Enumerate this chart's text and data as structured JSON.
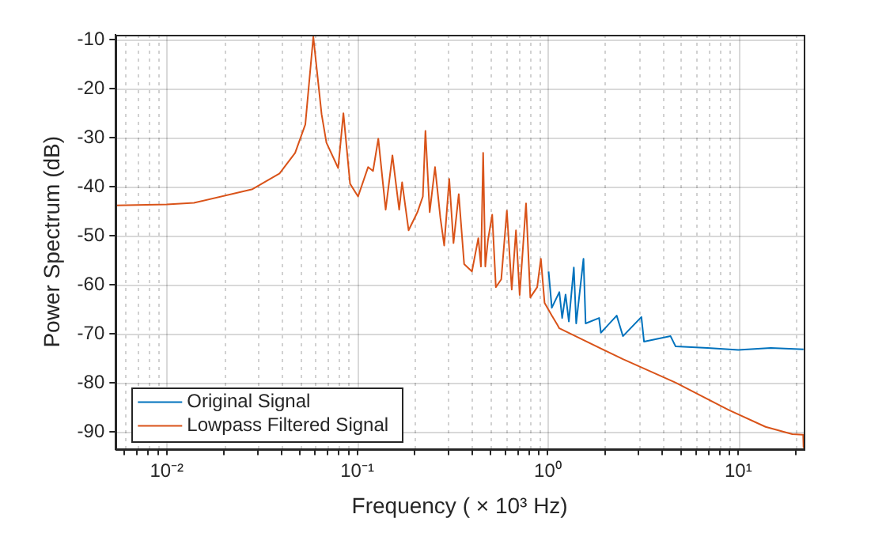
{
  "chart_data": {
    "type": "line",
    "xlabel": "Frequency ( × 10³ Hz)",
    "ylabel": "Power Spectrum (dB)",
    "log": "x",
    "grid": true,
    "legend": "bottom left",
    "marker": "none",
    "line_style": "solid",
    "xlim": [
      0.0054,
      22.05
    ],
    "ylim": [
      -93.5,
      -9
    ],
    "xticks": [
      {
        "value": 0.006,
        "label": null
      },
      {
        "value": 0.007,
        "label": null
      },
      {
        "value": 0.008,
        "label": null
      },
      {
        "value": 0.009,
        "label": null
      },
      {
        "value": 0.01,
        "label": "10⁻²"
      },
      {
        "value": 0.02,
        "label": null
      },
      {
        "value": 0.03,
        "label": null
      },
      {
        "value": 0.04,
        "label": null
      },
      {
        "value": 0.05,
        "label": null
      },
      {
        "value": 0.06,
        "label": null
      },
      {
        "value": 0.07,
        "label": null
      },
      {
        "value": 0.08,
        "label": null
      },
      {
        "value": 0.09,
        "label": null
      },
      {
        "value": 0.1,
        "label": "10⁻¹"
      },
      {
        "value": 0.2,
        "label": null
      },
      {
        "value": 0.3,
        "label": null
      },
      {
        "value": 0.4,
        "label": null
      },
      {
        "value": 0.5,
        "label": null
      },
      {
        "value": 0.6,
        "label": null
      },
      {
        "value": 0.7,
        "label": null
      },
      {
        "value": 0.8,
        "label": null
      },
      {
        "value": 0.9,
        "label": null
      },
      {
        "value": 1,
        "label": "10⁰"
      },
      {
        "value": 2,
        "label": null
      },
      {
        "value": 3,
        "label": null
      },
      {
        "value": 4,
        "label": null
      },
      {
        "value": 5,
        "label": null
      },
      {
        "value": 6,
        "label": null
      },
      {
        "value": 7,
        "label": null
      },
      {
        "value": 8,
        "label": null
      },
      {
        "value": 9,
        "label": null
      },
      {
        "value": 10,
        "label": "10¹"
      },
      {
        "value": 20,
        "label": null
      }
    ],
    "yticks": [
      -90,
      -80,
      -70,
      -60,
      -50,
      -40,
      -30,
      -20,
      -10
    ],
    "series": [
      {
        "name": "Original Signal",
        "color": "#0072bd",
        "x": [
          1.01,
          1.05,
          1.15,
          1.19,
          1.24,
          1.29,
          1.37,
          1.41,
          1.54,
          1.58,
          1.86,
          1.9,
          2.3,
          2.48,
          3.1,
          3.2,
          4.41,
          4.69,
          6.9,
          10,
          14.8,
          22
        ],
        "values": [
          -57.3,
          -64.7,
          -61.5,
          -66.8,
          -62,
          -67.5,
          -56.5,
          -67.9,
          -54.7,
          -67.9,
          -66.8,
          -69.8,
          -66.3,
          -70.5,
          -66.6,
          -71.6,
          -70.5,
          -72.6,
          -72.9,
          -73.3,
          -72.9,
          -73.2
        ]
      },
      {
        "name": "Lowpass Filtered Signal",
        "color": "#d95319",
        "x": [
          0.0054,
          0.01,
          0.0139,
          0.0282,
          0.0391,
          0.0472,
          0.0534,
          0.0588,
          0.065,
          0.0689,
          0.0794,
          0.0846,
          0.0917,
          0.101,
          0.114,
          0.121,
          0.129,
          0.141,
          0.153,
          0.166,
          0.172,
          0.186,
          0.207,
          0.221,
          0.228,
          0.24,
          0.256,
          0.273,
          0.286,
          0.304,
          0.32,
          0.341,
          0.364,
          0.4,
          0.432,
          0.446,
          0.458,
          0.47,
          0.485,
          0.511,
          0.534,
          0.57,
          0.61,
          0.647,
          0.681,
          0.712,
          0.769,
          0.81,
          0.88,
          0.92,
          0.962,
          1.05,
          1.12,
          1.15,
          2.48,
          4.69,
          8.94,
          13.9,
          19.2,
          21.9,
          22
        ],
        "values": [
          -43.8,
          -43.6,
          -43.3,
          -40.5,
          -37.3,
          -33.1,
          -27.3,
          -9.4,
          -25.2,
          -31,
          -36.2,
          -25,
          -39.4,
          -42,
          -36,
          -36.8,
          -30.2,
          -44.7,
          -33.6,
          -44.7,
          -39.1,
          -48.9,
          -45.2,
          -42,
          -28.6,
          -45.2,
          -36,
          -46.3,
          -52,
          -38.4,
          -51.5,
          -41.5,
          -55.8,
          -57.3,
          -50.5,
          -56.3,
          -33.1,
          -56.3,
          -51,
          -45.7,
          -60.5,
          -58.9,
          -44.9,
          -61,
          -48.9,
          -62.1,
          -43.4,
          -62.6,
          -60.5,
          -54.7,
          -63.7,
          -66.3,
          -68.1,
          -68.9,
          -75.2,
          -80,
          -85.6,
          -89,
          -90.5,
          -90.6,
          -93.2
        ]
      }
    ]
  }
}
